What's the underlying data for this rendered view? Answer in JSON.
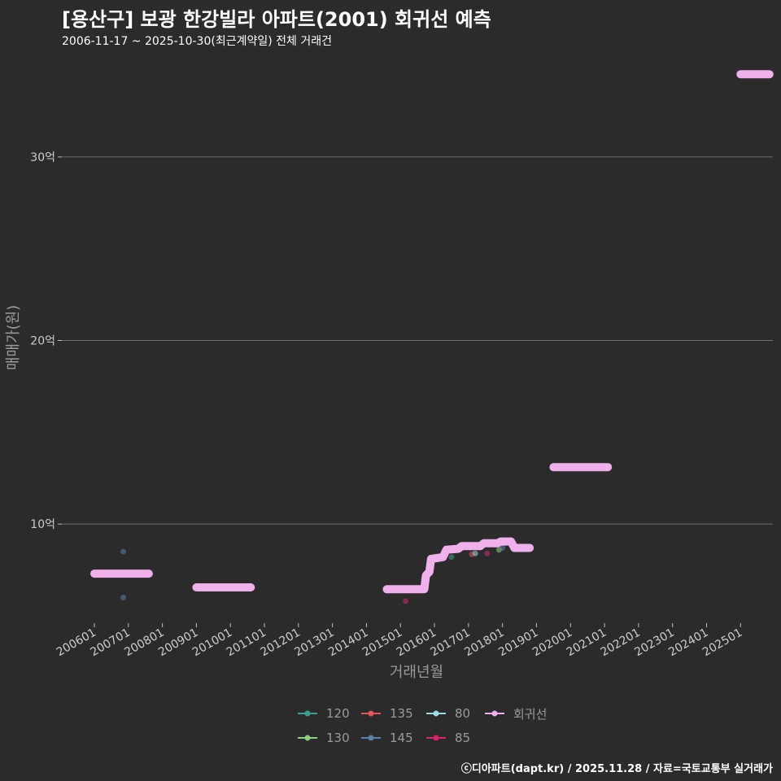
{
  "header": {
    "title": "[용산구] 보광 한강빌라 아파트(2001) 회귀선 예측",
    "subtitle": "2006-11-17 ~ 2025-10-30(최근계약일) 전체 거래건"
  },
  "footer": {
    "credit": "ⓒ디아파트(dapt.kr) / 2025.11.28 / 자료=국토교통부 실거래가"
  },
  "colors": {
    "background": "#2b2b2b",
    "grid": "#6e6e6e",
    "regression": "#f0b0ec"
  },
  "chart_data": {
    "type": "scatter",
    "title": "[용산구] 보광 한강빌라 아파트(2001) 회귀선 예측",
    "xlabel": "거래년월",
    "ylabel": "매매가(원)",
    "y_unit": "억",
    "xlim": [
      2006.0,
      2025.95
    ],
    "ylim": [
      4.6,
      35.8
    ],
    "y_ticks": [
      {
        "value": 10,
        "label": "10억"
      },
      {
        "value": 20,
        "label": "20억"
      },
      {
        "value": 30,
        "label": "30억"
      }
    ],
    "x_ticks": [
      {
        "value": 2006,
        "label": "200601"
      },
      {
        "value": 2007,
        "label": "200701"
      },
      {
        "value": 2008,
        "label": "200801"
      },
      {
        "value": 2009,
        "label": "200901"
      },
      {
        "value": 2010,
        "label": "201001"
      },
      {
        "value": 2011,
        "label": "201101"
      },
      {
        "value": 2012,
        "label": "201201"
      },
      {
        "value": 2013,
        "label": "201301"
      },
      {
        "value": 2014,
        "label": "201401"
      },
      {
        "value": 2015,
        "label": "201501"
      },
      {
        "value": 2016,
        "label": "201601"
      },
      {
        "value": 2017,
        "label": "201701"
      },
      {
        "value": 2018,
        "label": "201801"
      },
      {
        "value": 2019,
        "label": "201901"
      },
      {
        "value": 2020,
        "label": "202001"
      },
      {
        "value": 2021,
        "label": "202101"
      },
      {
        "value": 2022,
        "label": "202201"
      },
      {
        "value": 2023,
        "label": "202301"
      },
      {
        "value": 2024,
        "label": "202401"
      },
      {
        "value": 2025,
        "label": "202501"
      }
    ],
    "series": [
      {
        "name": "120",
        "color": "#3a9e8f",
        "points": [
          [
            2016.5,
            8.2
          ]
        ]
      },
      {
        "name": "130",
        "color": "#8cd17d",
        "points": [
          [
            2017.9,
            8.6
          ]
        ]
      },
      {
        "name": "135",
        "color": "#e15759",
        "points": [
          [
            2017.1,
            8.35
          ]
        ]
      },
      {
        "name": "145",
        "color": "#5b7fa6",
        "points": [
          [
            2006.85,
            8.5
          ],
          [
            2006.85,
            6.0
          ],
          [
            2018.0,
            8.7
          ]
        ]
      },
      {
        "name": "80",
        "color": "#9edae5",
        "points": [
          [
            2017.2,
            8.4
          ]
        ]
      },
      {
        "name": "85",
        "color": "#d6246e",
        "points": [
          [
            2015.15,
            5.8
          ],
          [
            2017.55,
            8.4
          ]
        ]
      }
    ],
    "regression": {
      "name": "회귀선",
      "segments": [
        [
          [
            2006.0,
            7.3
          ],
          [
            2007.6,
            7.3
          ]
        ],
        [
          [
            2009.0,
            6.55
          ],
          [
            2010.6,
            6.55
          ]
        ],
        [
          [
            2014.6,
            6.45
          ],
          [
            2015.7,
            6.45
          ],
          [
            2015.75,
            7.2
          ],
          [
            2015.85,
            7.4
          ],
          [
            2015.9,
            8.1
          ],
          [
            2016.25,
            8.2
          ],
          [
            2016.35,
            8.6
          ],
          [
            2016.7,
            8.65
          ],
          [
            2016.8,
            8.8
          ],
          [
            2017.35,
            8.8
          ],
          [
            2017.45,
            8.95
          ],
          [
            2017.85,
            8.95
          ],
          [
            2017.95,
            9.05
          ],
          [
            2018.25,
            9.05
          ],
          [
            2018.35,
            8.7
          ],
          [
            2018.8,
            8.7
          ]
        ],
        [
          [
            2019.5,
            13.1
          ],
          [
            2021.1,
            13.1
          ]
        ],
        [
          [
            2025.0,
            34.5
          ],
          [
            2025.85,
            34.5
          ]
        ]
      ]
    },
    "legend": [
      "120",
      "135",
      "80",
      "회귀선",
      "130",
      "145",
      "85"
    ],
    "legend_position": "bottom"
  }
}
